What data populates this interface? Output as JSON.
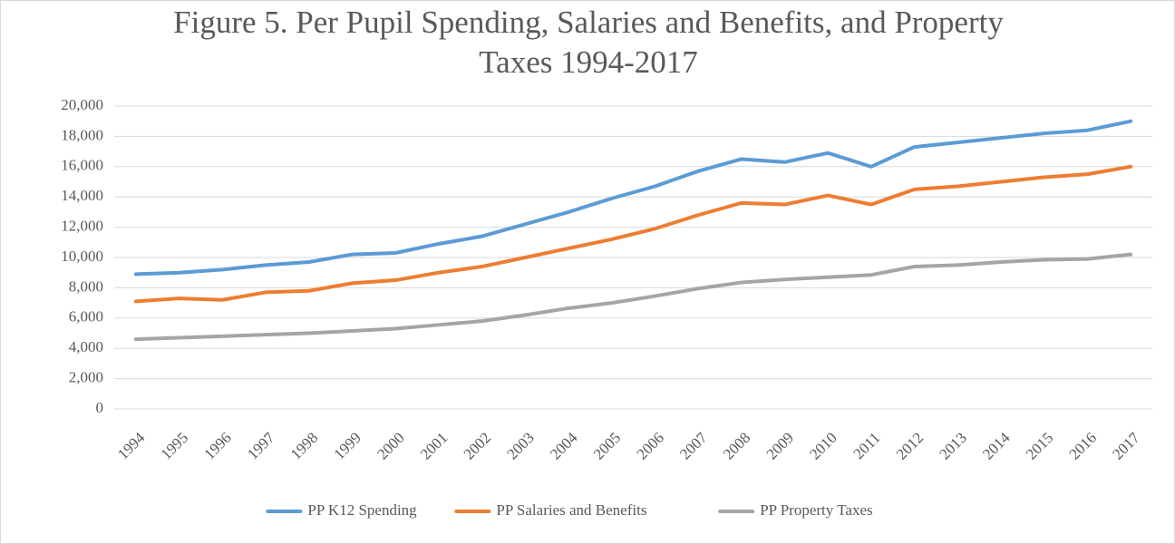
{
  "chart_data": {
    "type": "line",
    "title": "Figure 5. Per Pupil Spending, Salaries and Benefits, and Property Taxes 1994-2017",
    "categories": [
      "1994",
      "1995",
      "1996",
      "1997",
      "1998",
      "1999",
      "2000",
      "2001",
      "2002",
      "2003",
      "2004",
      "2005",
      "2006",
      "2007",
      "2008",
      "2009",
      "2010",
      "2011",
      "2012",
      "2013",
      "2014",
      "2015",
      "2016",
      "2017"
    ],
    "series": [
      {
        "name": "PP K12 Spending",
        "color": "#5b9bd5",
        "values": [
          8900,
          9000,
          9200,
          9500,
          9700,
          10200,
          10300,
          10900,
          11400,
          12200,
          13000,
          13900,
          14700,
          15700,
          16500,
          16300,
          16900,
          16000,
          17300,
          17600,
          17900,
          18200,
          18400,
          19000
        ]
      },
      {
        "name": "PP Salaries and Benefits",
        "color": "#ed7d31",
        "values": [
          7100,
          7300,
          7200,
          7700,
          7800,
          8300,
          8500,
          9000,
          9400,
          10000,
          10600,
          11200,
          11900,
          12800,
          13600,
          13500,
          14100,
          13500,
          14500,
          14700,
          15000,
          15300,
          15500,
          16000
        ]
      },
      {
        "name": "PP Property Taxes",
        "color": "#a5a5a5",
        "values": [
          4600,
          4700,
          4800,
          4900,
          5000,
          5150,
          5300,
          5550,
          5800,
          6200,
          6650,
          7000,
          7450,
          7950,
          8350,
          8550,
          8700,
          8850,
          9400,
          9500,
          9700,
          9850,
          9900,
          10200
        ]
      }
    ],
    "ylim": [
      0,
      20000
    ],
    "yticks": [
      0,
      {
        "value": 2000,
        "label": "2,000"
      },
      {
        "value": 4000,
        "label": "4,000"
      },
      {
        "value": 6000,
        "label": "6,000"
      },
      {
        "value": 8000,
        "label": "8,000"
      },
      {
        "value": 10000,
        "label": "10,000"
      },
      {
        "value": 12000,
        "label": "12,000"
      },
      {
        "value": 14000,
        "label": "14,000"
      },
      {
        "value": 16000,
        "label": "16,000"
      },
      {
        "value": 18000,
        "label": "18,000"
      },
      {
        "value": 20000,
        "label": "20,000"
      }
    ],
    "grid": true,
    "legend": "bottom"
  }
}
